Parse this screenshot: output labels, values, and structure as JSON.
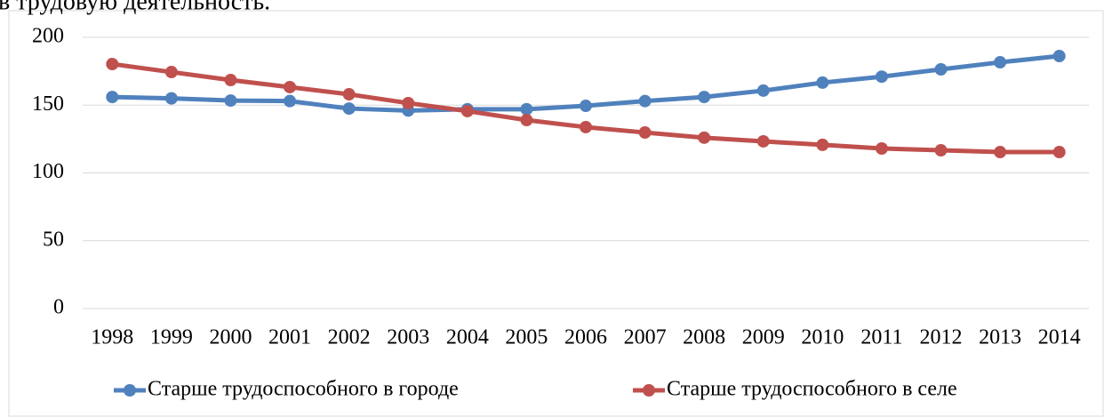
{
  "header_text": "в трудовую деятельность.",
  "chart_data": {
    "type": "line",
    "categories": [
      "1998",
      "1999",
      "2000",
      "2001",
      "2002",
      "2003",
      "2004",
      "2005",
      "2006",
      "2007",
      "2008",
      "2009",
      "2010",
      "2011",
      "2012",
      "2013",
      "2014"
    ],
    "series": [
      {
        "name": "Старше трудоспособного в городе",
        "color": "#4f81bd",
        "values": [
          156,
          155,
          153.4,
          153,
          147.5,
          146,
          147,
          147,
          149.5,
          153,
          156,
          160.7,
          166.6,
          171,
          176.4,
          181.6,
          186.2
        ]
      },
      {
        "name": "Старше трудоспособного в селе",
        "color": "#c0504d",
        "values": [
          180.3,
          174.4,
          168.5,
          163.3,
          158,
          151.5,
          145.6,
          139,
          133.8,
          129.8,
          126,
          123.3,
          120.7,
          118,
          116.7,
          115.4,
          115.4
        ]
      }
    ],
    "ylim": [
      0,
      200
    ],
    "yticks": [
      0,
      50,
      100,
      150,
      200
    ],
    "grid": true,
    "legend": "bottom"
  }
}
